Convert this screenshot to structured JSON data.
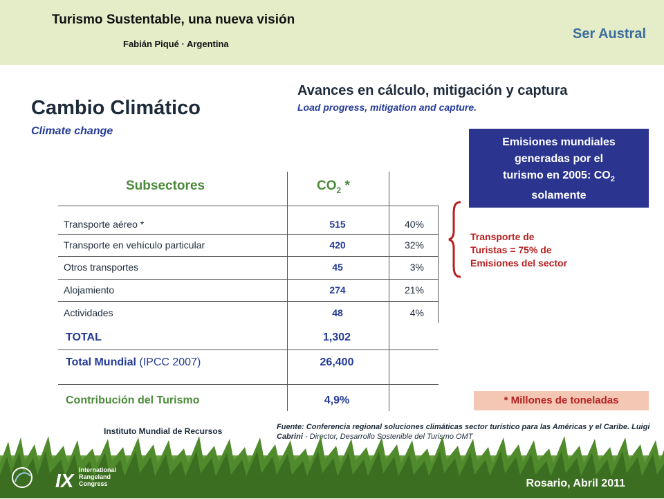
{
  "header": {
    "title": "Turismo Sustentable, una nueva visión",
    "author": "Fabián Piqué · Argentina",
    "brand": "Ser Austral"
  },
  "section": {
    "title": "Avances en cálculo, mitigación y captura",
    "subtitle": "Load progress, mitigation and capture."
  },
  "main": {
    "title": "Cambio Climático",
    "subtitle": "Climate change"
  },
  "info_box": {
    "line1": "Emisiones mundiales",
    "line2": "generadas por el",
    "line3": "turismo en 2005: CO",
    "sub": "2",
    "line4": "solamente"
  },
  "table": {
    "col1_header": "Subsectores",
    "col2_header_main": "CO",
    "col2_header_sub": "2",
    "col2_header_tail": " *",
    "rows": [
      {
        "label": "Transporte aéreo *",
        "value": "515",
        "pct": "40%"
      },
      {
        "label": "Transporte en vehículo particular",
        "value": "420",
        "pct": "32%"
      },
      {
        "label": "Otros transportes",
        "value": "45",
        "pct": "3%"
      },
      {
        "label": "Alojamiento",
        "value": "274",
        "pct": "21%"
      },
      {
        "label": "Actividades",
        "value": "48",
        "pct": "4%"
      }
    ],
    "total_label": "TOTAL",
    "total_value": "1,302",
    "world_label_bold": "Total Mundial",
    "world_label_light": " (IPCC 2007)",
    "world_value": "26,400",
    "contrib_label": "Contribución del Turismo",
    "contrib_value": "4,9%"
  },
  "annotation": {
    "line1": "Transporte de",
    "line2": "Turistas = 75% de",
    "line3": "Emisiones del sector",
    "color": "#b52020"
  },
  "units_note": "* Millones de toneladas",
  "institute": "Instituto Mundial de Recursos",
  "source": {
    "bold": "Fuente: Conferencia regional soluciones climáticas sector turístico para las Américas y el Caribe. Luigi Cabrini",
    "light": " - Director, Desarrollo Sostenible del Turismo OMT"
  },
  "footer": {
    "logo_roman": "IX",
    "logo_line1": "International",
    "logo_line2": "Rangeland",
    "logo_line3": "Congress",
    "date": "Rosario, Abril 2011"
  },
  "colors": {
    "header_bg": "#e4ecc8",
    "navy": "#2b3590",
    "green": "#4a8a3a",
    "red": "#b52020"
  }
}
